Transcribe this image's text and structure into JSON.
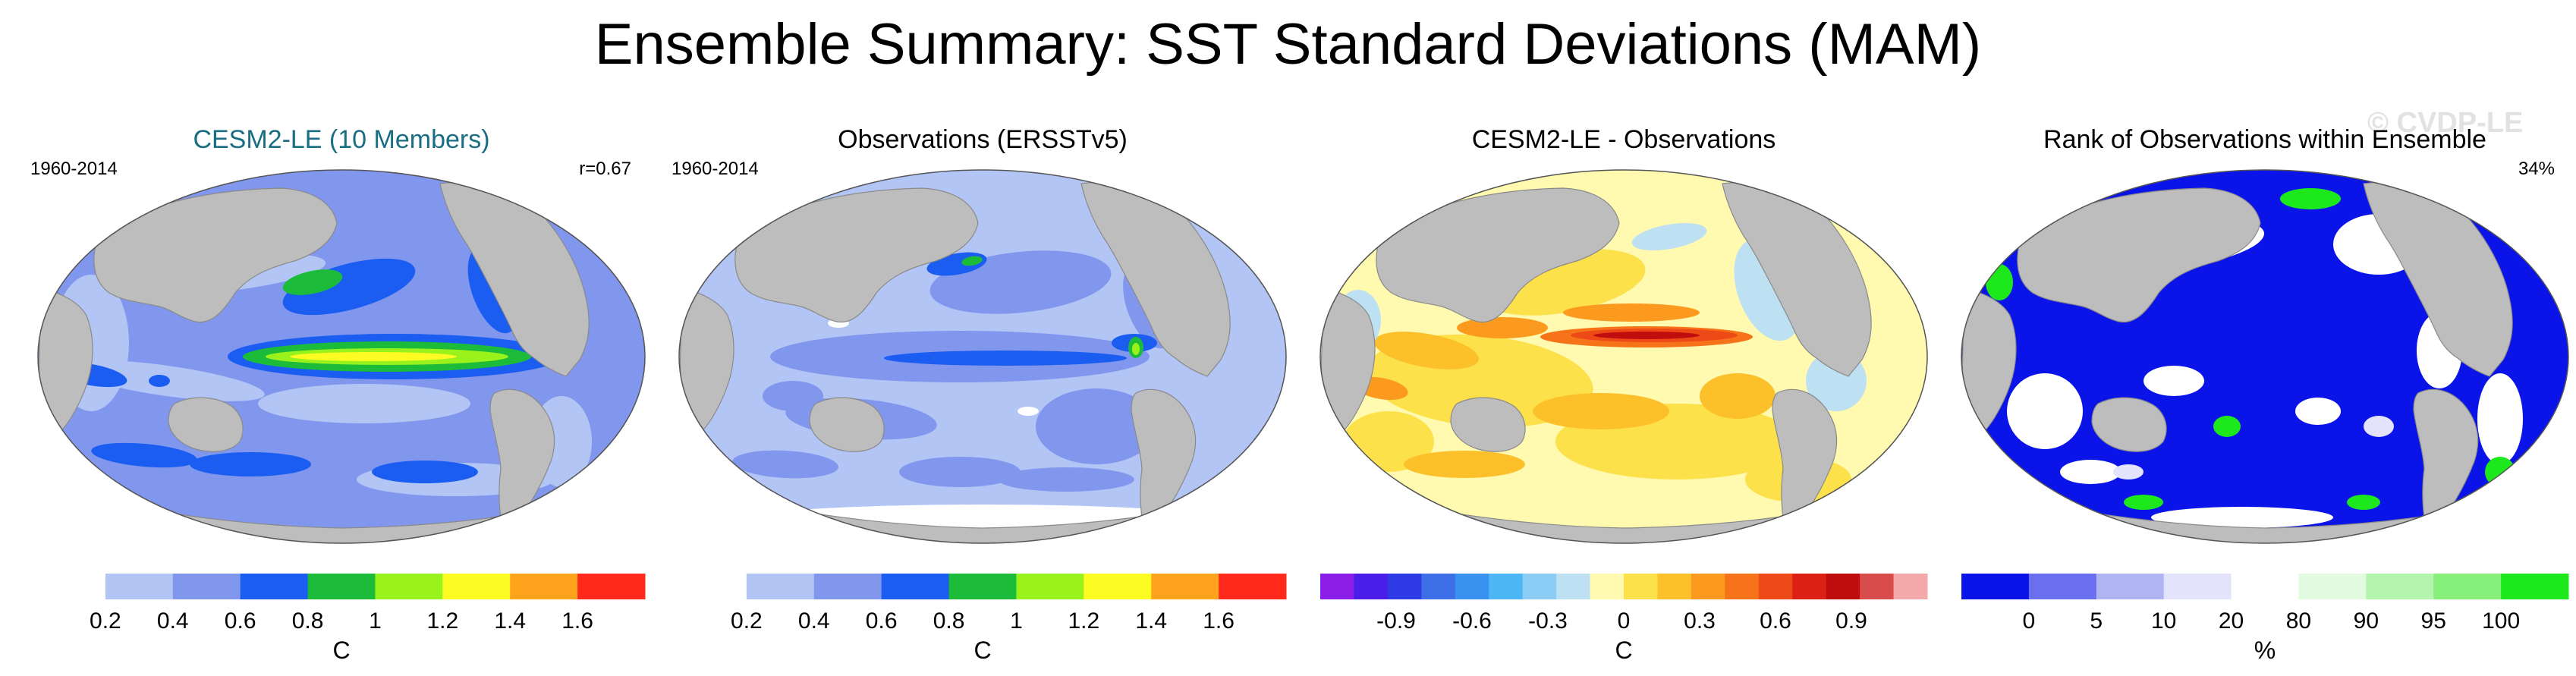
{
  "title": "Ensemble Summary: SST Standard Deviations (MAM)",
  "watermark": "© CVDP-LE",
  "colors": {
    "land": "#bdbdbd",
    "coast": "#8a8a8a",
    "background": "#ffffff",
    "title_teal": "#1a6e83"
  },
  "panels": [
    {
      "title": "CESM2-LE (10 Members)",
      "left_label": "1960-2014",
      "right_label": "r=0.67",
      "map_type": "sd_model",
      "colorbar": {
        "unit": "C",
        "colors": [
          "#ffffff",
          "#b3c5f5",
          "#8197ee",
          "#1a5df0",
          "#1cbc3a",
          "#99f21c",
          "#fcfc22",
          "#ffa31c",
          "#ff2a1c"
        ],
        "labels": [
          "0.2",
          "0.4",
          "0.6",
          "0.8",
          "1",
          "1.2",
          "1.4",
          "1.6"
        ]
      }
    },
    {
      "title": "Observations (ERSSTv5)",
      "left_label": "1960-2014",
      "right_label": "",
      "map_type": "sd_obs",
      "colorbar": {
        "unit": "C",
        "colors": [
          "#ffffff",
          "#b3c5f5",
          "#8197ee",
          "#1a5df0",
          "#1cbc3a",
          "#99f21c",
          "#fcfc22",
          "#ffa31c",
          "#ff2a1c"
        ],
        "labels": [
          "0.2",
          "0.4",
          "0.6",
          "0.8",
          "1",
          "1.2",
          "1.4",
          "1.6"
        ]
      }
    },
    {
      "title": "CESM2-LE - Observations",
      "left_label": "",
      "right_label": "",
      "map_type": "diff",
      "colorbar": {
        "unit": "C",
        "colors": [
          "#8a1ee8",
          "#4a1ee8",
          "#2d3ae6",
          "#3d6fe8",
          "#3a92f0",
          "#4db6f5",
          "#8ccdf5",
          "#bde1f3",
          "#fffab0",
          "#fde14a",
          "#fcc02a",
          "#fb9a1e",
          "#f6731a",
          "#ee4a18",
          "#dd2014",
          "#c00e0e",
          "#d94c4c",
          "#f3a9a9"
        ],
        "labels": [
          "-0.9",
          "-0.6",
          "-0.3",
          "0",
          "0.3",
          "0.6",
          "0.9"
        ]
      }
    },
    {
      "title": "Rank of Observations within Ensemble",
      "left_label": "",
      "right_label": "34%",
      "map_type": "rank",
      "colorbar": {
        "unit": "%",
        "colors": [
          "#0a14e8",
          "#6a6ff0",
          "#b0b4f3",
          "#e3e3fb",
          "#ffffff",
          "#e2fbe0",
          "#b4f5ad",
          "#86f07a",
          "#1ce81c"
        ],
        "labels": [
          "0",
          "5",
          "10",
          "20",
          "80",
          "90",
          "95",
          "100"
        ]
      }
    }
  ]
}
